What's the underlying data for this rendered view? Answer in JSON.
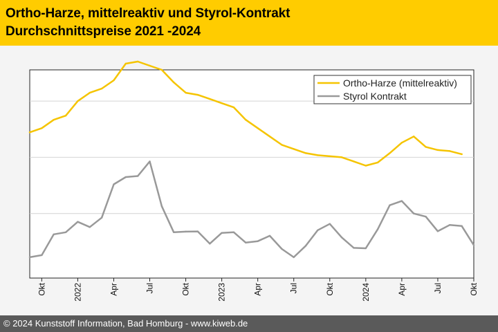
{
  "header": {
    "title_line1": "Ortho-Harze, mittelreaktiv und Styrol-Kontrakt",
    "title_line2": "Durchschnittspreise 2021 -2024"
  },
  "footer": {
    "copyright": "© 2024 Kunststoff Information, Bad Homburg - www.kiweb.de"
  },
  "colors": {
    "header_bg": "#ffcc00",
    "ortho": "#f5c400",
    "styrol": "#999999",
    "footer_bg": "#5a5a5a"
  },
  "chart_data": {
    "type": "line",
    "title": "Ortho-Harze, mittelreaktiv und Styrol-Kontrakt",
    "subtitle": "Durchschnittspreise 2021 -2024",
    "x_range": [
      0,
      37
    ],
    "ylim": [
      0,
      100
    ],
    "y_unit": "relative price level (no y-axis scale shown)",
    "gridlines_y": [
      31,
      58,
      85
    ],
    "grid": "horizontal",
    "legend_position": "top-right",
    "x_ticks": [
      {
        "x": 1,
        "label": "Okt"
      },
      {
        "x": 4,
        "label": "2022"
      },
      {
        "x": 7,
        "label": "Apr"
      },
      {
        "x": 10,
        "label": "Jul"
      },
      {
        "x": 13,
        "label": "Okt"
      },
      {
        "x": 16,
        "label": "2023"
      },
      {
        "x": 19,
        "label": "Apr"
      },
      {
        "x": 22,
        "label": "Jul"
      },
      {
        "x": 25,
        "label": "Okt"
      },
      {
        "x": 28,
        "label": "2024"
      },
      {
        "x": 31,
        "label": "Apr"
      },
      {
        "x": 34,
        "label": "Jul"
      },
      {
        "x": 37,
        "label": "Okt"
      }
    ],
    "series": [
      {
        "name": "Ortho-Harze (mittelreaktiv)",
        "color": "#f5c400",
        "x": [
          0,
          1,
          2,
          3,
          4,
          5,
          6,
          7,
          8,
          9,
          10,
          11,
          12,
          13,
          14,
          15,
          16,
          17,
          18,
          19,
          20,
          21,
          22,
          23,
          24,
          25,
          26,
          27,
          28,
          29,
          30,
          31,
          32,
          33,
          34,
          35,
          36
        ],
        "values": [
          70,
          72,
          76,
          78,
          85,
          89,
          91,
          95,
          103,
          104,
          102,
          100,
          94,
          89,
          88,
          86,
          84,
          82,
          76,
          72,
          68,
          64,
          62,
          60,
          59,
          58.5,
          58,
          56,
          54,
          55.5,
          60,
          65,
          68,
          63,
          61.5,
          61,
          59.5
        ]
      },
      {
        "name": "Styrol Kontrakt",
        "color": "#999999",
        "x": [
          0,
          1,
          2,
          3,
          4,
          5,
          6,
          7,
          8,
          9,
          10,
          11,
          12,
          13,
          14,
          15,
          16,
          17,
          18,
          19,
          20,
          21,
          22,
          23,
          24,
          25,
          26,
          27,
          28,
          29,
          30,
          31,
          32,
          33,
          34,
          35,
          36,
          37
        ],
        "values": [
          10,
          11,
          21,
          22,
          27,
          24.5,
          29,
          45,
          48.5,
          49,
          56,
          34.5,
          22,
          22.3,
          22.4,
          16.5,
          21.7,
          22,
          17,
          17.7,
          20.3,
          14,
          10,
          15.5,
          23,
          26,
          19.5,
          14.5,
          14.3,
          23.5,
          35,
          37,
          31,
          29.5,
          22.5,
          25.5,
          25,
          15.8
        ]
      }
    ]
  }
}
